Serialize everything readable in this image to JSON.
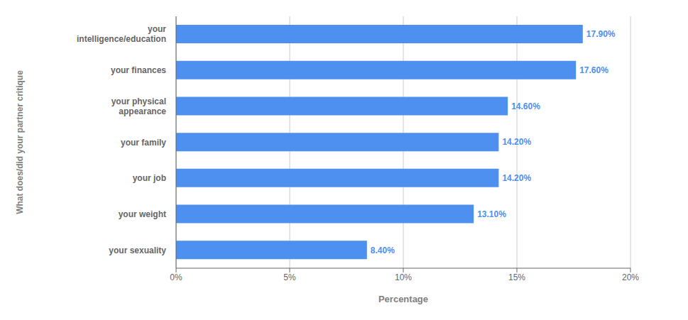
{
  "chart_data": {
    "type": "bar",
    "orientation": "horizontal",
    "categories": [
      "your sexuality",
      "your weight",
      "your job",
      "your family",
      "your physical\nappearance",
      "your finances",
      "your\nintelligence/education"
    ],
    "values": [
      8.4,
      13.1,
      14.2,
      14.2,
      14.6,
      17.6,
      17.9
    ],
    "value_labels": [
      "8.40%",
      "13.10%",
      "14.20%",
      "14.20%",
      "14.60%",
      "17.60%",
      "17.90%"
    ],
    "data_labels": true,
    "color": "#4d90f0",
    "xlim": [
      0,
      20
    ],
    "xticks": [
      {
        "value": 0,
        "label": "0%"
      },
      {
        "value": 5,
        "label": "5%"
      },
      {
        "value": 10,
        "label": "10%"
      },
      {
        "value": 15,
        "label": "15%"
      },
      {
        "value": 20,
        "label": "20%"
      }
    ],
    "xlabel": "Percentage",
    "ylabel": "What does/did your partner critique",
    "grid": true
  }
}
